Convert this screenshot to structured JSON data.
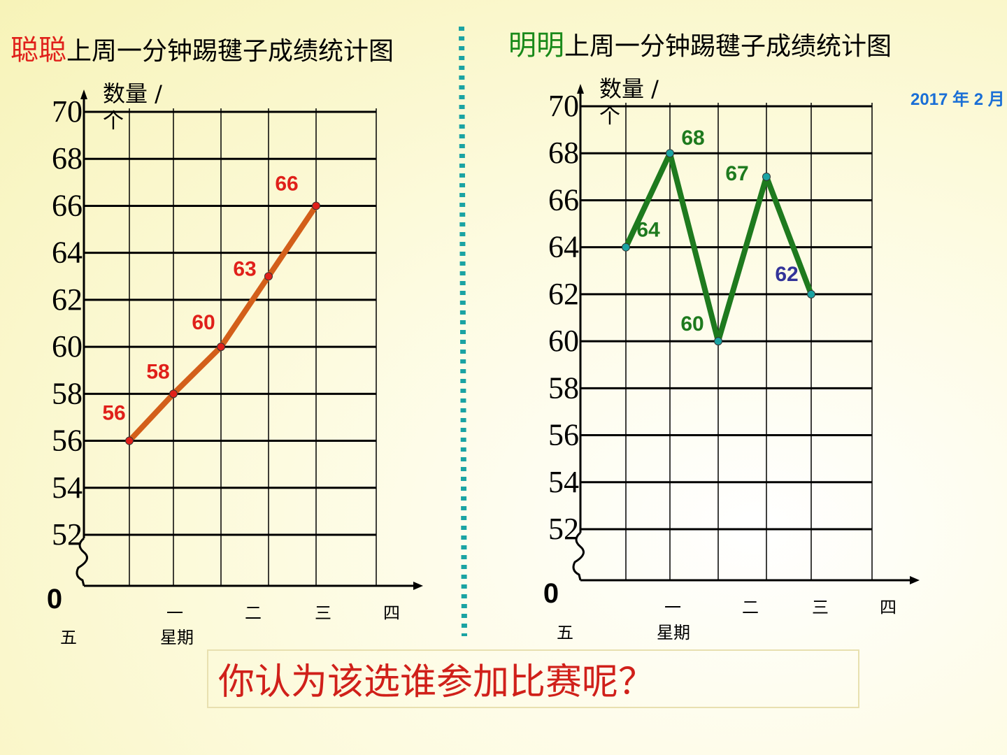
{
  "chart_data": [
    {
      "type": "line",
      "title_name": "聪聪",
      "title_name_color": "#e0201a",
      "title": "上周一分钟踢毽子成绩统计图",
      "y_label": "数量 /",
      "y_unit": "个",
      "x_label": "星期",
      "categories": [
        "一",
        "二",
        "三",
        "四",
        "五"
      ],
      "values": [
        56,
        58,
        60,
        63,
        66
      ],
      "color": "#d35f1a",
      "marker_color": "#e0201a",
      "label_colors": [
        "#e0201a",
        "#e0201a",
        "#e0201a",
        "#e0201a",
        "#e0201a"
      ],
      "ylim": [
        0,
        70
      ],
      "yticks": [
        0,
        52,
        54,
        56,
        58,
        60,
        62,
        64,
        66,
        68,
        70
      ],
      "axis_break": true,
      "grid": true
    },
    {
      "type": "line",
      "title_name": "明明",
      "title_name_color": "#1a8a1a",
      "title": "上周一分钟踢毽子成绩统计图",
      "y_label": "数量 /",
      "y_unit": "个",
      "x_label": "星期",
      "categories": [
        "一",
        "二",
        "三",
        "四",
        "五"
      ],
      "values": [
        64,
        68,
        60,
        67,
        62
      ],
      "color": "#1e7a1e",
      "marker_color": "#1aa3a3",
      "label_colors": [
        "#1e7a1e",
        "#1e7a1e",
        "#1e7a1e",
        "#1e7a1e",
        "#333399"
      ],
      "ylim": [
        0,
        70
      ],
      "yticks": [
        0,
        52,
        54,
        56,
        58,
        60,
        62,
        64,
        66,
        68,
        70
      ],
      "axis_break": true,
      "grid": true
    }
  ],
  "date": "2017 年 2 月",
  "question": "你认为该选谁参加比赛呢？"
}
